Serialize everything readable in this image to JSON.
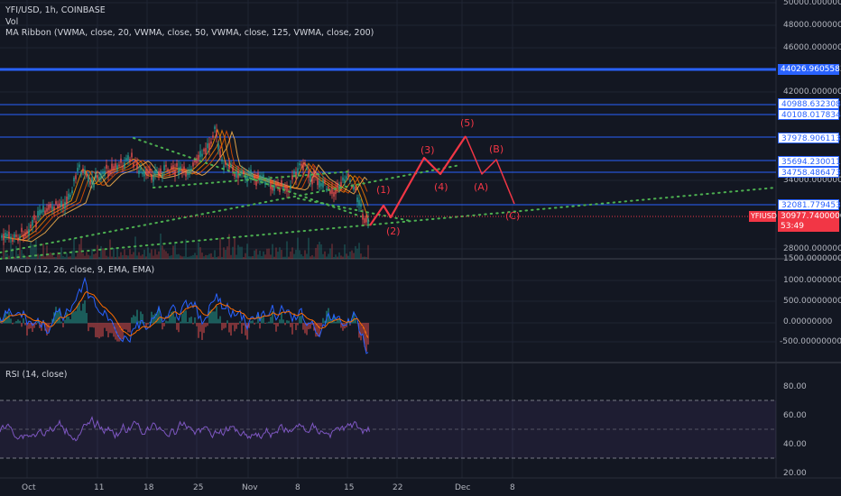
{
  "header": {
    "symbol_line": "YFI/USD, 1h, COINBASE",
    "volume_label": "Vol",
    "ma_ribbon_label": "MA Ribbon (VWMA, close, 20, VWMA, close, 50, VWMA, close, 125, VWMA, close, 200)"
  },
  "price_axis": {
    "ticks": [
      "50000.00000000",
      "48000.00000000",
      "46000.00000000",
      "42000.00000000",
      "34000.00000000",
      "28000.00000000",
      "1500.00000000"
    ],
    "levels": [
      {
        "value": "44026.96055837",
        "color": "#2962ff"
      },
      {
        "value": "40988.63230860",
        "color": "#2962ff"
      },
      {
        "value": "40108.01783467",
        "color": "#2962ff"
      },
      {
        "value": "37978.90611374",
        "color": "#2962ff"
      },
      {
        "value": "35694.23001142",
        "color": "#2962ff"
      },
      {
        "value": "34758.48647359",
        "color": "#2962ff"
      },
      {
        "value": "32081.77945354",
        "color": "#2962ff"
      }
    ],
    "current_symbol": "YFIUSD",
    "current_price": "30977.74000000",
    "countdown": "53:49",
    "current_color": "#f23645"
  },
  "elliott_labels": [
    "(1)",
    "(2)",
    "(3)",
    "(4)",
    "(5)",
    "(A)",
    "(B)",
    "(C)"
  ],
  "macd": {
    "label": "MACD (12, 26, close, 9, EMA, EMA)",
    "ticks": [
      "1000.00000000",
      "500.00000000",
      "0.00000000",
      "-500.00000000"
    ]
  },
  "rsi": {
    "label": "RSI (14, close)",
    "ticks": [
      "80.00",
      "60.00",
      "40.00",
      "20.00"
    ]
  },
  "date_axis": [
    "Oct",
    "11",
    "18",
    "25",
    "Nov",
    "8",
    "15",
    "22",
    "Dec",
    "8"
  ],
  "colors": {
    "background": "#131722",
    "hline": "#2962ff",
    "wave": "#f23645",
    "trend_dots": "#4caf50",
    "macd_line": "#2962ff",
    "signal_line": "#ff6d00",
    "rsi_line": "#7e57c2",
    "candle_up": "#26a69a",
    "candle_down": "#ef5350"
  }
}
